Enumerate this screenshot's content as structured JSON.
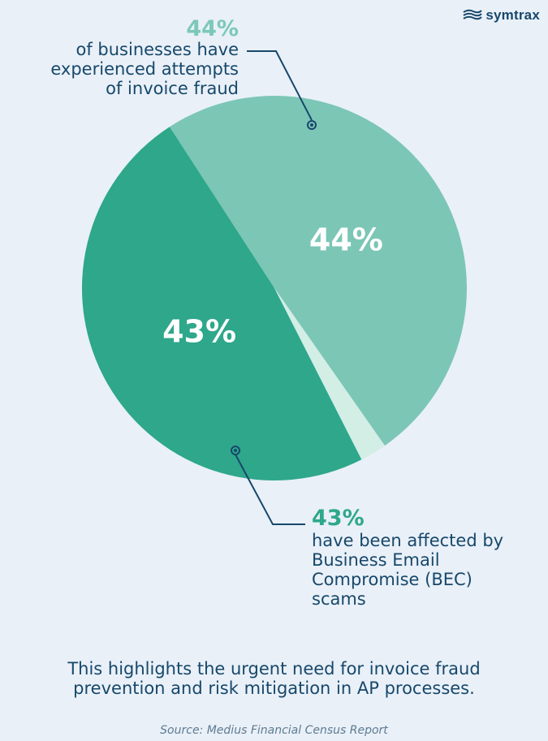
{
  "brand": {
    "logo_text": "symtrax",
    "logo_icon": "wave-icon"
  },
  "chart_data": {
    "type": "pie",
    "title": "",
    "slices": [
      {
        "label": "44%",
        "value": 44,
        "color": "#7cc6b6"
      },
      {
        "label": "",
        "value": 2,
        "color": "#d3eee5"
      },
      {
        "label": "43%",
        "value": 43,
        "color": "#2ea78b"
      }
    ]
  },
  "callouts": {
    "top": {
      "percent": "44%",
      "text": "of businesses have\nexperienced attempts\nof invoice fraud"
    },
    "bottom": {
      "percent": "43%",
      "text": "have been affected by\nBusiness Email\nCompromise (BEC)\nscams"
    }
  },
  "footer": {
    "note": "This highlights the urgent need for invoice fraud\nprevention and risk mitigation in AP processes.",
    "source": "Source: Medius Financial Census Report"
  },
  "colors": {
    "background": "#e9f0f8",
    "text_dark": "#17486a",
    "accent_light": "#7cc6b6",
    "accent_dark": "#2ea78b",
    "sliver": "#d3eee5"
  }
}
